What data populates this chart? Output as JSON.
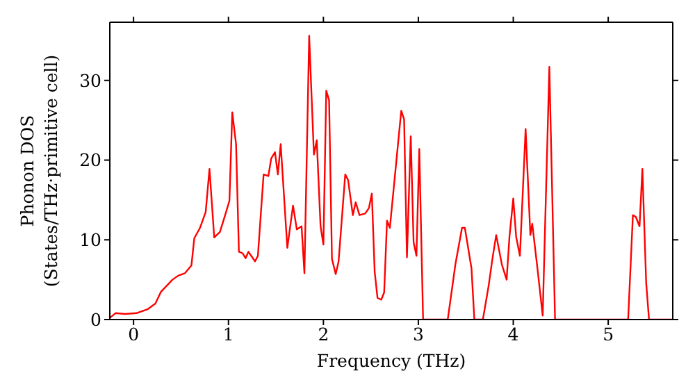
{
  "chart_data": {
    "type": "line",
    "xlabel": "Frequency (THz)",
    "ylabel": "Phonon DOS\n(States/THz·primitive cell)",
    "x": [
      -0.25,
      -0.19,
      -0.09,
      0.03,
      0.15,
      0.23,
      0.29,
      0.41,
      0.47,
      0.54,
      0.61,
      0.64,
      0.7,
      0.76,
      0.8,
      0.85,
      0.91,
      0.96,
      1.01,
      1.04,
      1.08,
      1.11,
      1.15,
      1.18,
      1.21,
      1.28,
      1.31,
      1.37,
      1.42,
      1.45,
      1.49,
      1.52,
      1.55,
      1.62,
      1.68,
      1.72,
      1.77,
      1.8,
      1.85,
      1.9,
      1.93,
      1.97,
      2.0,
      2.03,
      2.06,
      2.09,
      2.13,
      2.16,
      2.23,
      2.26,
      2.31,
      2.34,
      2.38,
      2.44,
      2.48,
      2.51,
      2.54,
      2.57,
      2.61,
      2.64,
      2.67,
      2.7,
      2.82,
      2.85,
      2.88,
      2.92,
      2.95,
      2.98,
      3.01,
      3.05,
      3.31,
      3.39,
      3.46,
      3.49,
      3.56,
      3.59,
      3.68,
      3.74,
      3.78,
      3.82,
      3.88,
      3.93,
      3.96,
      4.0,
      4.03,
      4.07,
      4.13,
      4.18,
      4.2,
      4.25,
      4.31,
      4.38,
      4.44,
      5.21,
      5.26,
      5.29,
      5.33,
      5.36,
      5.4,
      5.43,
      5.68
    ],
    "series": [
      {
        "color": "#ff0000",
        "values": [
          0.2,
          0.8,
          0.7,
          0.8,
          1.3,
          2,
          3.5,
          5,
          5.5,
          5.8,
          6.8,
          10.2,
          11.5,
          13.5,
          18.9,
          10.3,
          11,
          12.9,
          14.9,
          26,
          22,
          8.5,
          8.3,
          7.7,
          8.5,
          7.3,
          8,
          18.2,
          18,
          20.2,
          21,
          18.2,
          22,
          9,
          14.3,
          11.3,
          11.7,
          5.8,
          35.6,
          20.7,
          22.5,
          11.7,
          9.4,
          28.7,
          27.5,
          7.6,
          5.7,
          7.3,
          18.2,
          17.5,
          13.1,
          14.7,
          13.1,
          13.3,
          14,
          15.8,
          6,
          2.7,
          2.5,
          3.4,
          12.4,
          11.5,
          26.2,
          25.1,
          7.8,
          23,
          9.7,
          8,
          21.4,
          0,
          0,
          6.9,
          11.5,
          11.5,
          6.4,
          0,
          0,
          4.2,
          7.6,
          10.6,
          6.9,
          5,
          10.4,
          15.2,
          10.4,
          8,
          23.9,
          10.6,
          12,
          6.9,
          0.5,
          31.7,
          0,
          0,
          13.1,
          12.9,
          11.7,
          18.9,
          4.6,
          0,
          0
        ]
      }
    ],
    "xlim": [
      -0.25,
      5.68
    ],
    "ylim": [
      0,
      37.3
    ],
    "xticks": [
      0,
      1,
      2,
      3,
      4,
      5
    ],
    "yticks": [
      0,
      10,
      20,
      30
    ],
    "grid": false,
    "marker": "none",
    "line_style": "solid"
  }
}
